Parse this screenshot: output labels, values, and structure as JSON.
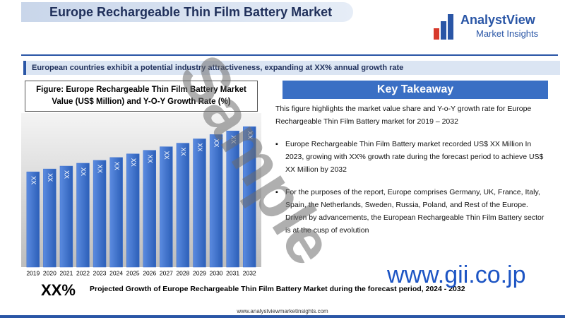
{
  "header": {
    "title": "Europe Rechargeable Thin Film Battery Market",
    "logo_name": "AnalystView",
    "logo_sub": "Market Insights"
  },
  "subheading": "European countries exhibit a potential industry attractiveness, expanding at XX% annual growth rate",
  "figure_title": "Figure: Europe Rechargeable Thin Film Battery Market Value (US$ Million) and Y-O-Y Growth Rate (%)",
  "chart_data": {
    "type": "bar",
    "categories": [
      "2019",
      "2020",
      "2021",
      "2022",
      "2023",
      "2024",
      "2025",
      "2026",
      "2027",
      "2028",
      "2029",
      "2030",
      "2031",
      "2032"
    ],
    "values": [
      133,
      137,
      141,
      145,
      149,
      153,
      158,
      163,
      168,
      173,
      179,
      185,
      190,
      196
    ],
    "bar_label": "XX",
    "color": "#3b6fd0",
    "ylim": [
      0,
      215
    ]
  },
  "key_takeaway": {
    "title": "Key Takeaway",
    "paragraphs": [
      "This figure highlights the market value share and Y-o-Y growth rate for Europe Rechargeable Thin Film Battery market for 2019 – 2032",
      "Europe Rechargeable Thin Film Battery market recorded US$ XX Million In 2023, growing with XX% growth rate during the forecast period to achieve US$ XX Million by 2032",
      "For the purposes of the report, Europe comprises Germany, UK, France, Italy, Spain, the Netherlands, Sweden, Russia, Poland, and Rest of the Europe. Driven by advancements, the European Rechargeable Thin Film Battery sector is at the cusp of evolution"
    ]
  },
  "projection": {
    "value": "XX%",
    "text": "Projected Growth of Europe Rechargeable Thin Film Battery Market during the forecast period, 2024 - 2032"
  },
  "footer": "www.analystviewmarketinsights.com",
  "watermarks": [
    "Sample",
    "www.gii.co.jp"
  ]
}
